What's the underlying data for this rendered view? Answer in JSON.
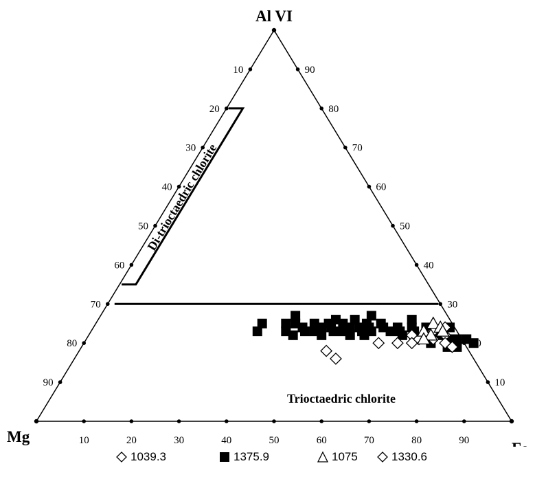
{
  "chart_data": {
    "type": "scatter",
    "subtype": "ternary",
    "corners": {
      "top": "Al VI",
      "left": "Mg",
      "right": "Fe"
    },
    "axis_ticks": [
      10,
      20,
      30,
      40,
      50,
      60,
      70,
      80,
      90
    ],
    "left_edge_labels": [
      "10",
      "20",
      "30",
      "40",
      "50",
      "60",
      "70",
      "80",
      "90"
    ],
    "right_edge_labels": [
      "90",
      "80",
      "70",
      "60",
      "50",
      "40",
      "30",
      "20",
      "10"
    ],
    "bottom_edge_labels": [
      "10",
      "20",
      "30",
      "40",
      "50",
      "60",
      "70",
      "80",
      "90"
    ],
    "regions": [
      {
        "name": "Di-trioctaedric chlorite"
      },
      {
        "name": "Trioctaedric chlorite"
      }
    ],
    "boundary_lines": {
      "al_30_line": {
        "Al": 30
      },
      "di_tri_outline": [
        {
          "Al": 80,
          "Fe": 0
        },
        {
          "Al": 80,
          "Fe": 3
        },
        {
          "Al": 70,
          "Fe": 3
        },
        {
          "Al": 35,
          "Fe": 3
        },
        {
          "Al": 35,
          "Fe": 0
        }
      ]
    },
    "series": [
      {
        "name": "1039.3",
        "marker": "diamond-open",
        "points": [
          {
            "Al": 18,
            "Fe": 52
          },
          {
            "Al": 16,
            "Fe": 55
          },
          {
            "Al": 20,
            "Fe": 62
          }
        ]
      },
      {
        "name": "1375.9",
        "marker": "square-filled",
        "points": [
          {
            "Al": 23,
            "Fe": 35
          },
          {
            "Al": 25,
            "Fe": 35
          },
          {
            "Al": 27,
            "Fe": 41
          },
          {
            "Al": 25,
            "Fe": 40
          },
          {
            "Al": 23,
            "Fe": 41
          },
          {
            "Al": 25,
            "Fe": 42
          },
          {
            "Al": 22,
            "Fe": 43
          },
          {
            "Al": 24,
            "Fe": 44
          },
          {
            "Al": 23,
            "Fe": 45
          },
          {
            "Al": 25,
            "Fe": 46
          },
          {
            "Al": 23,
            "Fe": 47
          },
          {
            "Al": 24,
            "Fe": 48
          },
          {
            "Al": 25,
            "Fe": 49
          },
          {
            "Al": 22,
            "Fe": 49
          },
          {
            "Al": 24,
            "Fe": 50
          },
          {
            "Al": 26,
            "Fe": 50
          },
          {
            "Al": 23,
            "Fe": 51
          },
          {
            "Al": 25,
            "Fe": 52
          },
          {
            "Al": 23,
            "Fe": 53
          },
          {
            "Al": 24,
            "Fe": 54
          },
          {
            "Al": 26,
            "Fe": 54
          },
          {
            "Al": 22,
            "Fe": 55
          },
          {
            "Al": 24,
            "Fe": 56
          },
          {
            "Al": 23,
            "Fe": 57
          },
          {
            "Al": 25,
            "Fe": 57
          },
          {
            "Al": 27,
            "Fe": 57
          },
          {
            "Al": 22,
            "Fe": 58
          },
          {
            "Al": 24,
            "Fe": 58
          },
          {
            "Al": 23,
            "Fe": 59
          },
          {
            "Al": 25,
            "Fe": 60
          },
          {
            "Al": 24,
            "Fe": 61
          },
          {
            "Al": 23,
            "Fe": 63
          },
          {
            "Al": 24,
            "Fe": 64
          },
          {
            "Al": 23,
            "Fe": 65
          },
          {
            "Al": 22,
            "Fe": 66
          },
          {
            "Al": 24,
            "Fe": 67
          },
          {
            "Al": 26,
            "Fe": 66
          },
          {
            "Al": 23,
            "Fe": 68
          },
          {
            "Al": 21,
            "Fe": 69
          },
          {
            "Al": 24,
            "Fe": 70
          },
          {
            "Al": 22,
            "Fe": 71
          },
          {
            "Al": 20,
            "Fe": 73
          },
          {
            "Al": 22,
            "Fe": 74
          },
          {
            "Al": 24,
            "Fe": 75
          },
          {
            "Al": 21,
            "Fe": 76
          },
          {
            "Al": 19,
            "Fe": 77
          },
          {
            "Al": 21,
            "Fe": 78
          },
          {
            "Al": 19,
            "Fe": 79
          },
          {
            "Al": 21,
            "Fe": 80
          },
          {
            "Al": 20,
            "Fe": 82
          }
        ]
      },
      {
        "name": "1075",
        "marker": "triangle-open",
        "points": [
          {
            "Al": 25,
            "Fe": 71
          },
          {
            "Al": 23,
            "Fe": 70
          },
          {
            "Al": 22,
            "Fe": 72
          },
          {
            "Al": 24,
            "Fe": 73
          },
          {
            "Al": 21,
            "Fe": 71
          },
          {
            "Al": 23,
            "Fe": 74
          }
        ]
      },
      {
        "name": "1330.6",
        "marker": "diamond-open",
        "points": [
          {
            "Al": 20,
            "Fe": 66
          },
          {
            "Al": 22,
            "Fe": 68
          },
          {
            "Al": 20,
            "Fe": 69
          },
          {
            "Al": 21,
            "Fe": 70
          },
          {
            "Al": 23,
            "Fe": 72
          },
          {
            "Al": 21,
            "Fe": 73
          },
          {
            "Al": 24,
            "Fe": 74
          },
          {
            "Al": 22,
            "Fe": 75
          },
          {
            "Al": 20,
            "Fe": 76
          },
          {
            "Al": 19,
            "Fe": 78
          }
        ]
      }
    ]
  }
}
